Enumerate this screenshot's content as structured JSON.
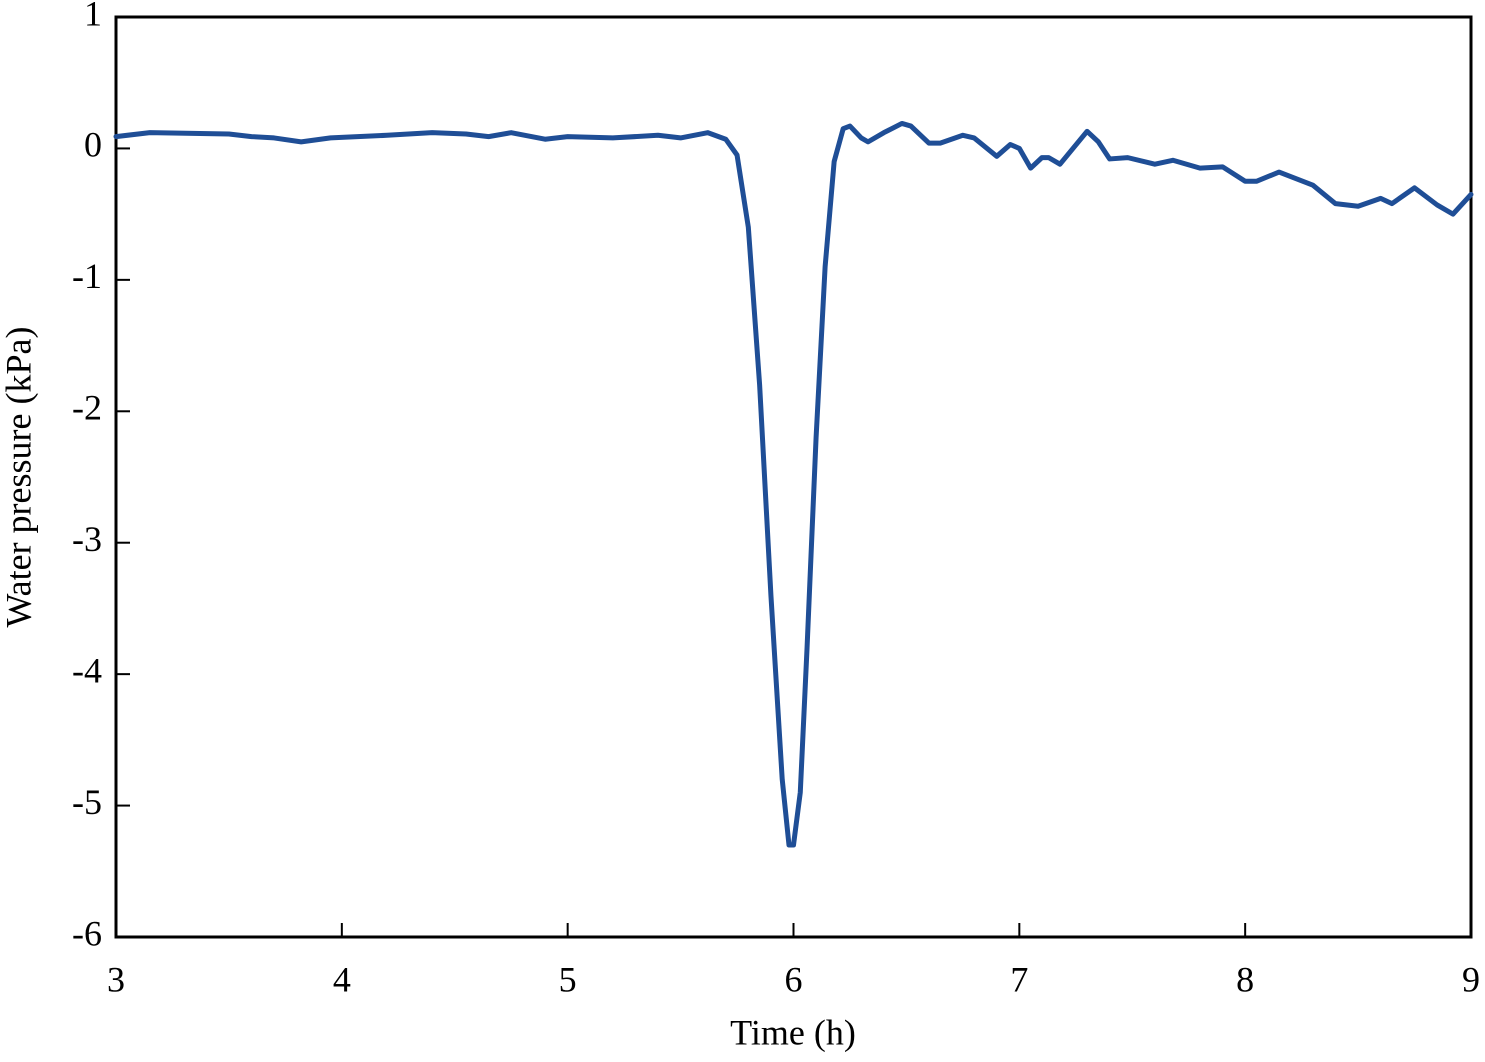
{
  "chart_data": {
    "type": "line",
    "x_label": "Time (h)",
    "y_label": "Water pressure (kPa)",
    "xlim": [
      3,
      9
    ],
    "xticks": [
      3,
      4,
      5,
      6,
      7,
      8,
      9
    ],
    "ylim": [
      -6,
      1
    ],
    "yticks": [
      -6,
      -5,
      -4,
      -3,
      -2,
      -1,
      0,
      1
    ],
    "series": [
      {
        "color": "#1f4e96",
        "x": [
          3.0,
          3.15,
          3.5,
          3.6,
          3.7,
          3.82,
          3.95,
          4.2,
          4.4,
          4.55,
          4.65,
          4.75,
          4.9,
          5.0,
          5.2,
          5.4,
          5.5,
          5.62,
          5.7,
          5.75,
          5.8,
          5.85,
          5.9,
          5.95,
          5.98,
          6.0,
          6.03,
          6.06,
          6.1,
          6.14,
          6.18,
          6.22,
          6.25,
          6.3,
          6.33,
          6.4,
          6.48,
          6.52,
          6.6,
          6.65,
          6.75,
          6.8,
          6.9,
          6.96,
          7.0,
          7.05,
          7.1,
          7.13,
          7.18,
          7.3,
          7.35,
          7.4,
          7.48,
          7.6,
          7.68,
          7.8,
          7.9,
          8.0,
          8.05,
          8.15,
          8.3,
          8.4,
          8.5,
          8.6,
          8.65,
          8.75,
          8.85,
          8.92,
          9.0
        ],
        "values": [
          0.09,
          0.12,
          0.11,
          0.09,
          0.08,
          0.05,
          0.08,
          0.1,
          0.12,
          0.11,
          0.09,
          0.12,
          0.07,
          0.09,
          0.08,
          0.1,
          0.08,
          0.12,
          0.07,
          -0.05,
          -0.6,
          -1.8,
          -3.4,
          -4.8,
          -5.3,
          -5.3,
          -4.9,
          -3.8,
          -2.2,
          -0.9,
          -0.1,
          0.15,
          0.17,
          0.08,
          0.05,
          0.12,
          0.19,
          0.17,
          0.04,
          0.04,
          0.1,
          0.08,
          -0.06,
          0.03,
          0.0,
          -0.15,
          -0.07,
          -0.07,
          -0.12,
          0.13,
          0.05,
          -0.08,
          -0.07,
          -0.12,
          -0.09,
          -0.15,
          -0.14,
          -0.25,
          -0.25,
          -0.18,
          -0.28,
          -0.42,
          -0.44,
          -0.38,
          -0.42,
          -0.3,
          -0.43,
          -0.5,
          -0.35
        ]
      }
    ]
  }
}
